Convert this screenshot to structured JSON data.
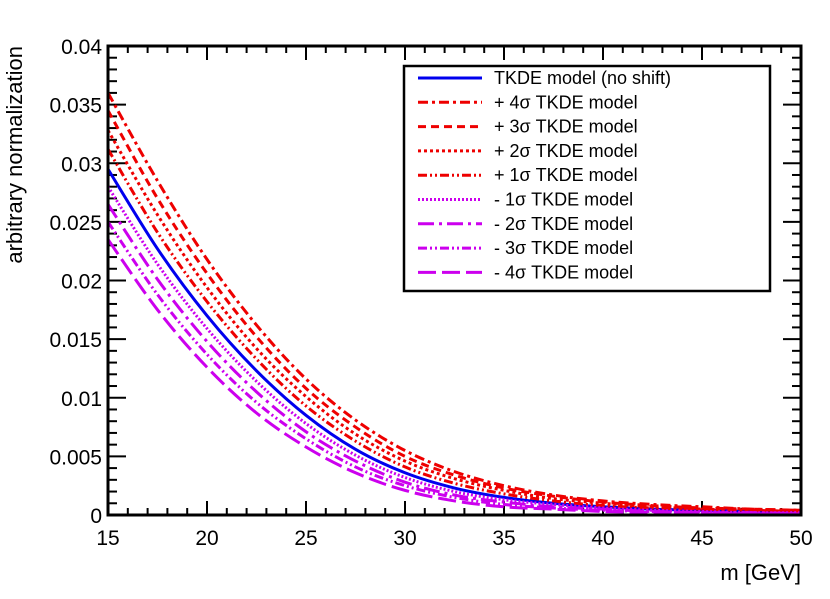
{
  "chart_data": {
    "type": "line",
    "title": "",
    "xlabel": "m [GeV]",
    "ylabel": "arbitrary normalization",
    "xlim": [
      15,
      50
    ],
    "ylim": [
      0,
      0.04
    ],
    "x_major_ticks": [
      15,
      20,
      25,
      30,
      35,
      40,
      45,
      50
    ],
    "x_tick_labels": [
      "15",
      "20",
      "25",
      "30",
      "35",
      "40",
      "45",
      "50"
    ],
    "y_major_ticks": [
      0,
      0.005,
      0.01,
      0.015,
      0.02,
      0.025,
      0.03,
      0.035,
      0.04
    ],
    "y_tick_labels": [
      "0",
      "0.005",
      "0.01",
      "0.015",
      "0.02",
      "0.025",
      "0.03",
      "0.035",
      "0.04"
    ],
    "x": [
      15,
      17.5,
      20,
      22.5,
      25,
      27.5,
      30,
      32.5,
      35,
      37.5,
      40,
      42.5,
      45,
      47.5,
      50
    ],
    "legend_position": "top-right",
    "series": [
      {
        "name": "TKDE model (no shift)",
        "color": "#0000ee",
        "dash": "solid",
        "values": [
          0.0295,
          0.0227,
          0.017,
          0.0123,
          0.0085,
          0.0056,
          0.0036,
          0.0023,
          0.0015,
          0.001,
          0.0007,
          0.0005,
          0.0004,
          0.0003,
          0.0002
        ]
      },
      {
        "name": "+ 4σ TKDE model",
        "color": "#ee0000",
        "dash": "dashdot",
        "values": [
          0.036,
          0.0285,
          0.0218,
          0.0162,
          0.0116,
          0.0081,
          0.0055,
          0.0037,
          0.0025,
          0.0017,
          0.0012,
          0.0009,
          0.0007,
          0.0005,
          0.0004
        ]
      },
      {
        "name": "+ 3σ TKDE model",
        "color": "#ee0000",
        "dash": "dashed",
        "values": [
          0.0345,
          0.027,
          0.0206,
          0.0152,
          0.0108,
          0.0075,
          0.005,
          0.0034,
          0.0023,
          0.0016,
          0.0011,
          0.0008,
          0.0006,
          0.0005,
          0.0004
        ]
      },
      {
        "name": "+ 2σ TKDE model",
        "color": "#ee0000",
        "dash": "dotted",
        "values": [
          0.0328,
          0.0256,
          0.0194,
          0.0142,
          0.0101,
          0.0069,
          0.0046,
          0.0031,
          0.0021,
          0.0014,
          0.001,
          0.0007,
          0.0005,
          0.0004,
          0.0003
        ]
      },
      {
        "name": "+ 1σ TKDE model",
        "color": "#ee0000",
        "dash": "dashdotdot",
        "values": [
          0.0312,
          0.0241,
          0.0182,
          0.0133,
          0.0093,
          0.0063,
          0.0041,
          0.0027,
          0.0018,
          0.0012,
          0.0008,
          0.0006,
          0.0005,
          0.0004,
          0.0003
        ]
      },
      {
        "name": "- 1σ TKDE model",
        "color": "#cc00ee",
        "dash": "fine-dotted",
        "values": [
          0.028,
          0.0214,
          0.0159,
          0.0114,
          0.0078,
          0.0051,
          0.0032,
          0.002,
          0.0013,
          0.0009,
          0.0006,
          0.0004,
          0.0003,
          0.0002,
          0.0002
        ]
      },
      {
        "name": "- 2σ TKDE model",
        "color": "#cc00ee",
        "dash": "longdashdot",
        "values": [
          0.0265,
          0.0201,
          0.0148,
          0.0105,
          0.0071,
          0.0046,
          0.0028,
          0.0017,
          0.0011,
          0.0007,
          0.0005,
          0.0003,
          0.0002,
          0.0002,
          0.0001
        ]
      },
      {
        "name": "- 3σ TKDE model",
        "color": "#cc00ee",
        "dash": "dashdotdot",
        "values": [
          0.025,
          0.0188,
          0.0137,
          0.0096,
          0.0065,
          0.0041,
          0.0025,
          0.0015,
          0.0009,
          0.0006,
          0.0004,
          0.0003,
          0.0002,
          0.0001,
          0.0001
        ]
      },
      {
        "name": "- 4σ TKDE model",
        "color": "#cc00ee",
        "dash": "longdash",
        "values": [
          0.0235,
          0.0175,
          0.0126,
          0.0087,
          0.0058,
          0.0036,
          0.0021,
          0.0012,
          0.0007,
          0.0005,
          0.0003,
          0.0002,
          0.0001,
          0.0001,
          0.0001
        ]
      }
    ]
  }
}
